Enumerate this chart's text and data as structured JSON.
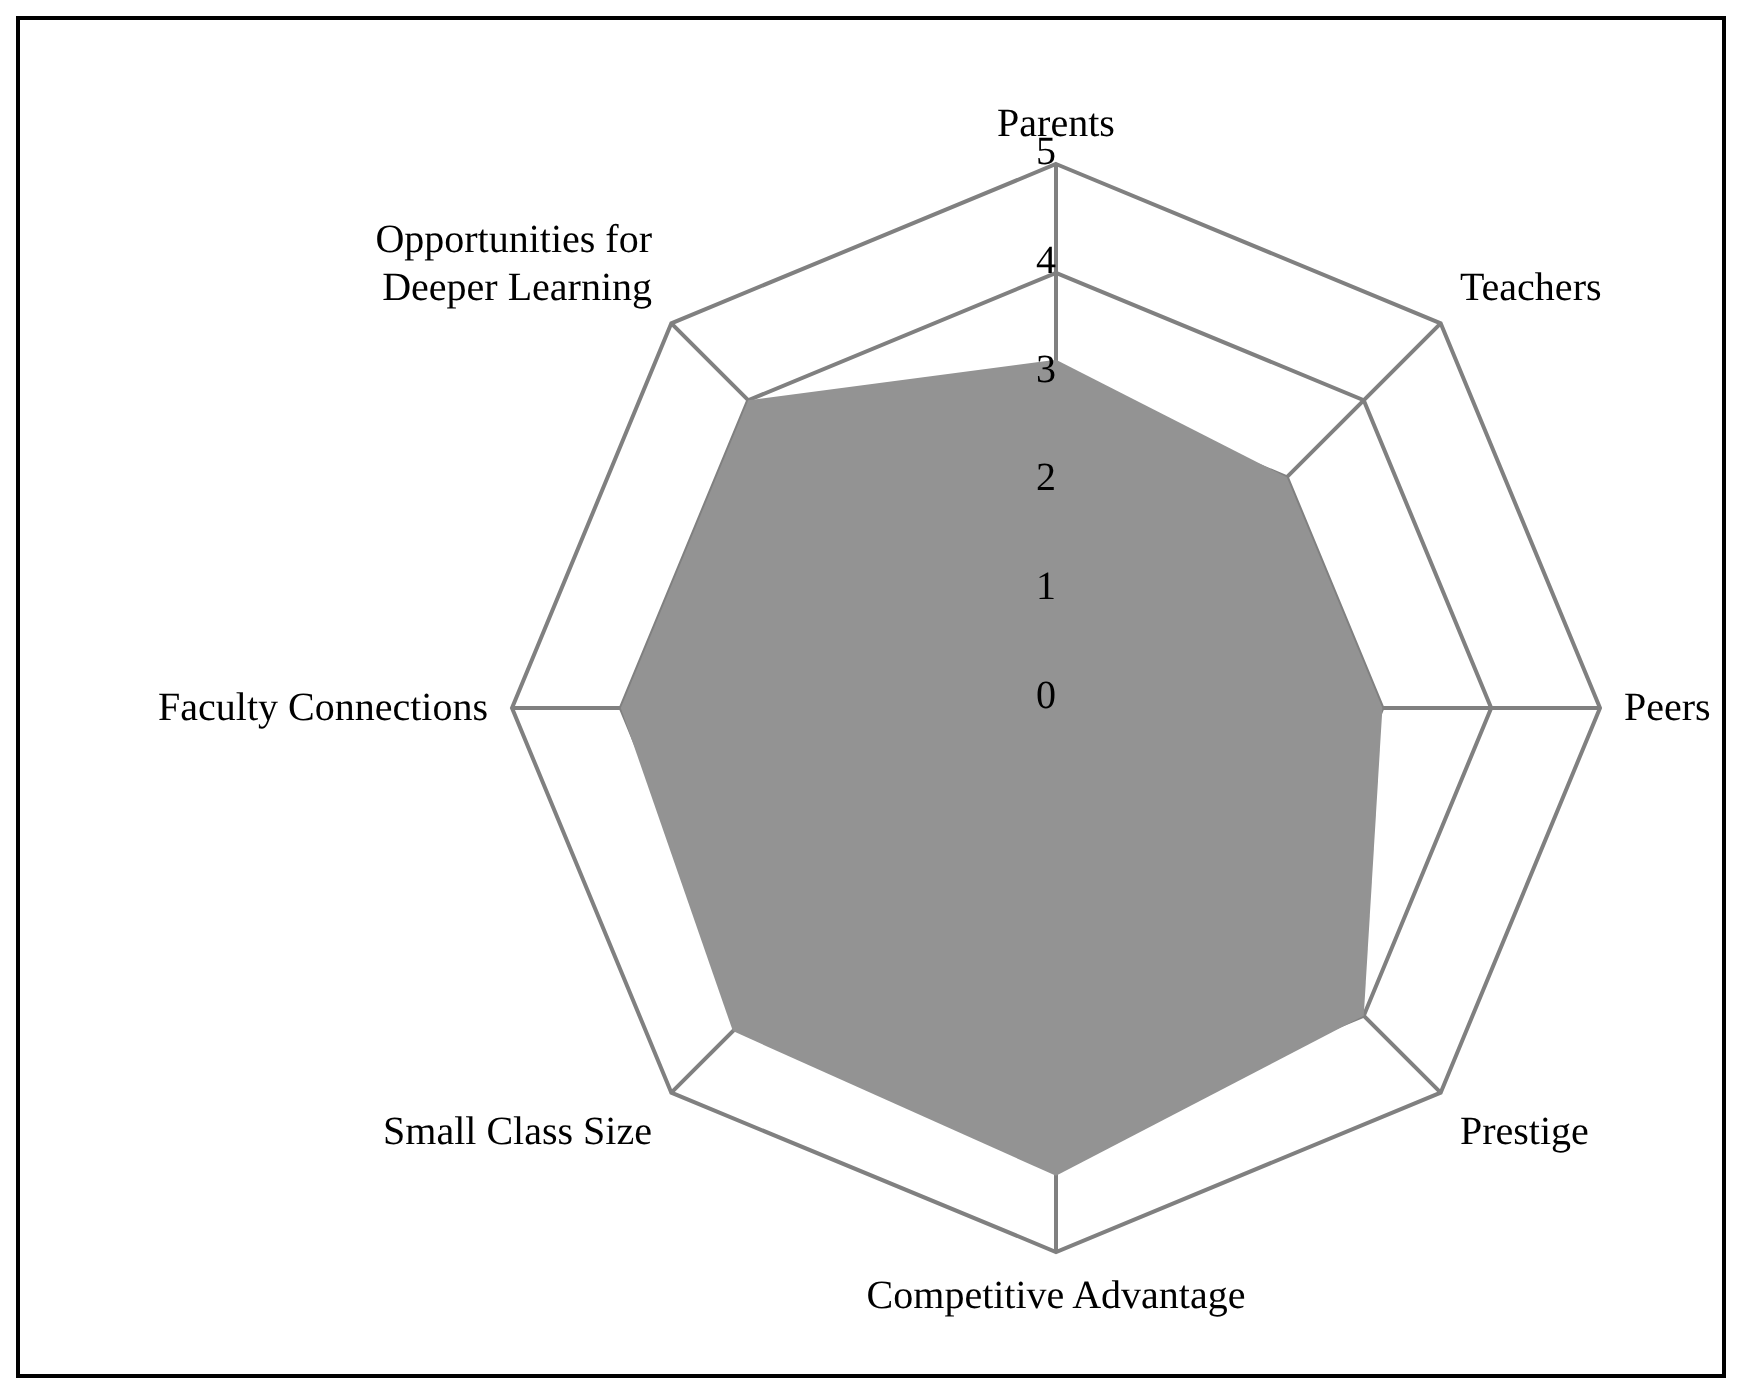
{
  "chart_data": {
    "type": "radar",
    "categories": [
      "Parents",
      "Teachers",
      "Peers",
      "Prestige",
      "Competitive Advantage",
      "Small Class Size",
      "Faculty Connections",
      "Opportunities for Deeper Learning"
    ],
    "series": [
      {
        "color": "#939393",
        "values": [
          3.2,
          3.0,
          3.0,
          4.0,
          4.3,
          4.2,
          4.0,
          4.0
        ]
      }
    ],
    "ylim": [
      0,
      5
    ],
    "yticks": [
      0,
      1,
      2,
      3,
      4,
      5
    ],
    "grid": true
  }
}
